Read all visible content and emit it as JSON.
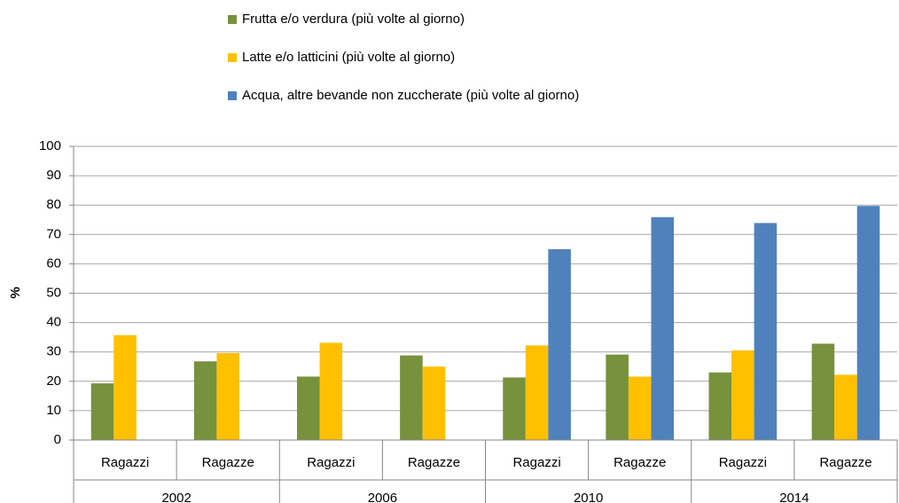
{
  "chart_data": {
    "type": "bar",
    "y_label": "%",
    "categories": [
      "Ragazzi",
      "Ragazze",
      "Ragazzi",
      "Ragazze",
      "Ragazzi",
      "Ragazze",
      "Ragazzi",
      "Ragazze"
    ],
    "groups": [
      "2002",
      "2006",
      "2010",
      "2014"
    ],
    "series": [
      {
        "name": "Frutta e/o verdura (più volte al giorno)",
        "color": "#76923c",
        "values": [
          19.3,
          26.8,
          21.6,
          28.8,
          21.3,
          29.1,
          23.0,
          32.8
        ]
      },
      {
        "name": "Latte e/o latticini (più volte al giorno)",
        "color": "#ffc000",
        "values": [
          35.7,
          29.6,
          33.1,
          25.0,
          32.2,
          21.6,
          30.5,
          22.2
        ]
      },
      {
        "name": "Acqua, altre bevande non zuccherate (più volte al giorno)",
        "color": "#4f81bd",
        "values": [
          null,
          null,
          null,
          null,
          65.0,
          75.9,
          73.9,
          79.7
        ]
      }
    ],
    "ylim": [
      0,
      100
    ],
    "yticks": [
      0,
      10,
      20,
      30,
      40,
      50,
      60,
      70,
      80,
      90,
      100
    ],
    "grid": true
  }
}
